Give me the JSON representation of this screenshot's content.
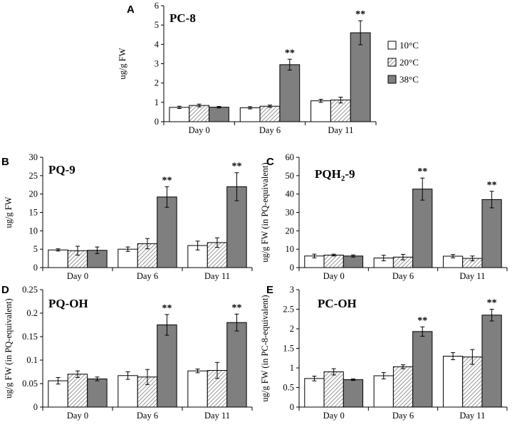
{
  "colors": {
    "c10": "#ffffff",
    "c38": "#7f7f7f",
    "hatch": "#7a7a7a",
    "axis": "#000000"
  },
  "legend": {
    "entries": [
      "10°C",
      "20°C",
      "38°C"
    ]
  },
  "chart_data": [
    {
      "type": "bar",
      "letter": "A",
      "title": "PC-8",
      "ylabel": "ug/g FW",
      "categories": [
        "Day 0",
        "Day 6",
        "Day 11"
      ],
      "ylim": [
        0,
        6
      ],
      "yticks": [
        "0",
        "1",
        "2",
        "3",
        "4",
        "5",
        "6"
      ],
      "series": [
        {
          "name": "10°C",
          "values": [
            0.74,
            0.72,
            1.08
          ],
          "errors": [
            0.06,
            0.06,
            0.08
          ]
        },
        {
          "name": "20°C",
          "values": [
            0.84,
            0.8,
            1.12
          ],
          "errors": [
            0.07,
            0.06,
            0.15
          ]
        },
        {
          "name": "38°C",
          "values": [
            0.75,
            2.95,
            4.6
          ],
          "errors": [
            0.04,
            0.28,
            0.62
          ]
        }
      ],
      "significance": [
        "",
        "**",
        "**"
      ]
    },
    {
      "type": "bar",
      "letter": "B",
      "title": "PQ-9",
      "ylabel": "ug/g FW",
      "categories": [
        "Day 0",
        "Day 6",
        "Day 11"
      ],
      "ylim": [
        0,
        30
      ],
      "yticks": [
        "0",
        "5",
        "10",
        "15",
        "20",
        "25",
        "30"
      ],
      "series": [
        {
          "name": "10°C",
          "values": [
            4.8,
            5.0,
            6.0
          ],
          "errors": [
            0.3,
            0.6,
            1.2
          ]
        },
        {
          "name": "20°C",
          "values": [
            4.6,
            6.5,
            6.8
          ],
          "errors": [
            1.2,
            1.4,
            1.3
          ]
        },
        {
          "name": "38°C",
          "values": [
            4.7,
            19.2,
            22.0
          ],
          "errors": [
            0.9,
            2.8,
            3.8
          ]
        }
      ],
      "significance": [
        "",
        "**",
        "**"
      ]
    },
    {
      "type": "bar",
      "letter": "C",
      "title": "PQH",
      "title_sub": "2",
      "title_suffix": "-9",
      "ylabel": "ug/g FW (in PQ-equivalent)",
      "categories": [
        "Day 0",
        "Day 6",
        "Day 11"
      ],
      "ylim": [
        0,
        60
      ],
      "yticks": [
        "0",
        "10",
        "20",
        "30",
        "40",
        "50",
        "60"
      ],
      "series": [
        {
          "name": "10°C",
          "values": [
            6.3,
            5.2,
            6.2
          ],
          "errors": [
            1.0,
            1.5,
            0.9
          ]
        },
        {
          "name": "20°C",
          "values": [
            6.8,
            5.7,
            5.0
          ],
          "errors": [
            0.5,
            1.5,
            1.3
          ]
        },
        {
          "name": "38°C",
          "values": [
            6.3,
            42.7,
            37.0
          ],
          "errors": [
            0.6,
            6.0,
            4.5
          ]
        }
      ],
      "significance": [
        "",
        "**",
        "**"
      ]
    },
    {
      "type": "bar",
      "letter": "D",
      "title": "PQ-OH",
      "ylabel": "ug/g FW (in PQ-equivalent)",
      "categories": [
        "Day 0",
        "Day 6",
        "Day 11"
      ],
      "ylim": [
        0,
        0.25
      ],
      "yticks": [
        "0",
        "0.05",
        "0.1",
        "0.15",
        "0.2",
        "0.25"
      ],
      "series": [
        {
          "name": "10°C",
          "values": [
            0.056,
            0.067,
            0.077
          ],
          "errors": [
            0.007,
            0.008,
            0.004
          ]
        },
        {
          "name": "20°C",
          "values": [
            0.07,
            0.064,
            0.078
          ],
          "errors": [
            0.007,
            0.016,
            0.017
          ]
        },
        {
          "name": "38°C",
          "values": [
            0.06,
            0.175,
            0.18
          ],
          "errors": [
            0.004,
            0.022,
            0.018
          ]
        }
      ],
      "significance": [
        "",
        "**",
        "**"
      ]
    },
    {
      "type": "bar",
      "letter": "E",
      "title": "PC-OH",
      "ylabel": "ug/g FW (in PC-8-equivalent)",
      "categories": [
        "Day 0",
        "Day 6",
        "Day 11"
      ],
      "ylim": [
        0,
        3
      ],
      "yticks": [
        "0",
        "0.5",
        "1",
        "1.5",
        "2",
        "2.5",
        "3"
      ],
      "series": [
        {
          "name": "10°C",
          "values": [
            0.73,
            0.8,
            1.3
          ],
          "errors": [
            0.06,
            0.08,
            0.09
          ]
        },
        {
          "name": "20°C",
          "values": [
            0.9,
            1.03,
            1.28
          ],
          "errors": [
            0.08,
            0.05,
            0.19
          ]
        },
        {
          "name": "38°C",
          "values": [
            0.7,
            1.93,
            2.35
          ],
          "errors": [
            0.02,
            0.12,
            0.15
          ]
        }
      ],
      "significance": [
        "",
        "**",
        "**"
      ]
    }
  ]
}
